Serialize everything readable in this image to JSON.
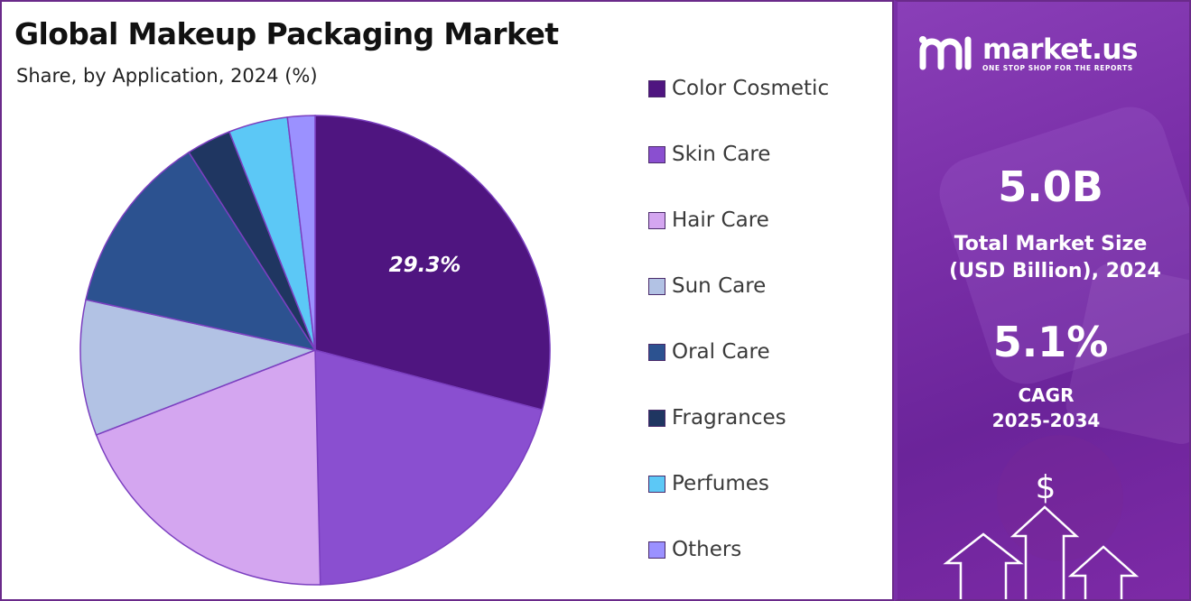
{
  "chart_data": {
    "type": "pie",
    "title": "Global Makeup Packaging Market",
    "subtitle": "Share, by Application, 2024 (%)",
    "categories": [
      "Color Cosmetic",
      "Skin Care",
      "Hair Care",
      "Sun Care",
      "Oral Care",
      "Fragrances",
      "Perfumes",
      "Others"
    ],
    "values": [
      29.3,
      20.7,
      19.6,
      9.4,
      12.6,
      3.1,
      4.1,
      1.9
    ],
    "colors": [
      "#4f1580",
      "#8a4fd0",
      "#d4a6f0",
      "#b2c2e4",
      "#2c5290",
      "#1f3661",
      "#5cc8f6",
      "#9b91ff"
    ],
    "data_labels": [
      "29.3%",
      "",
      "",
      "",
      "",
      "",
      "",
      ""
    ],
    "legend_position": "right"
  },
  "sidebar": {
    "brand_name": "market.us",
    "brand_tagline": "ONE STOP SHOP FOR THE REPORTS",
    "market_size_value": "5.0B",
    "market_size_label_line1": "Total Market Size",
    "market_size_label_line2": "(USD Billion), 2024",
    "cagr_value": "5.1%",
    "cagr_label_line1": "CAGR",
    "cagr_label_line2": "2025-2034",
    "currency_symbol": "$"
  }
}
